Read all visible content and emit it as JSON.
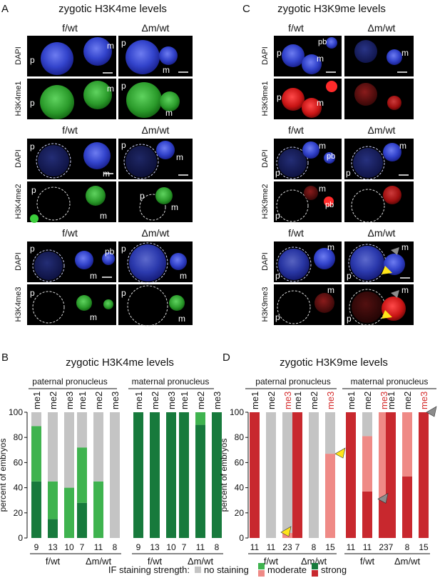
{
  "panels": {
    "A": {
      "letter": "A",
      "title": "zygotic H3K4me levels"
    },
    "C": {
      "letter": "C",
      "title": "zygotic H3K9me levels"
    },
    "B": {
      "letter": "B",
      "title": "zygotic H3K4me levels"
    },
    "D": {
      "letter": "D",
      "title": "zygotic H3K9me levels"
    }
  },
  "genotypes": {
    "control": "f/wt",
    "mutant": "Δm/wt"
  },
  "image_labels": {
    "p": "p",
    "m": "m",
    "pb": "pb",
    "A_rows": [
      "DAPI",
      "H3K4me1",
      "DAPI",
      "H3K4me2",
      "DAPI",
      "H3K4me3"
    ],
    "C_rows": [
      "DAPI",
      "H3K9me1",
      "DAPI",
      "H3K9me2",
      "DAPI",
      "H3K9me3"
    ]
  },
  "chart_common": {
    "ylabel": "percent of embryos",
    "yticks": [
      "0",
      "20",
      "40",
      "60",
      "80",
      "100"
    ],
    "paternal": "paternal pronucleus",
    "maternal": "maternal pronucleus",
    "marks": [
      "me1",
      "me2",
      "me3"
    ]
  },
  "legend": {
    "title": "IF staining strength:",
    "items": [
      "no staining",
      "moderate",
      "strong"
    ]
  },
  "colors": {
    "green_strong": "#177a3c",
    "green_moderate": "#3fb34f",
    "red_strong": "#c8282e",
    "red_moderate": "#ef8a86",
    "none": "#c4c4c4",
    "arrow_yellow": "#ffe51a",
    "arrow_gray": "#8c8c8c"
  },
  "chart_data": [
    {
      "type": "bar",
      "title": "zygotic H3K4me levels",
      "ylabel": "percent of embryos",
      "ylim": [
        0,
        100
      ],
      "stacked": true,
      "bars": [
        {
          "pronucleus": "paternal",
          "genotype": "f/wt",
          "mark": "me1",
          "n": "9",
          "strong": 45,
          "moderate": 44,
          "none": 11
        },
        {
          "pronucleus": "paternal",
          "genotype": "f/wt",
          "mark": "me2",
          "n": "13",
          "strong": 15,
          "moderate": 30,
          "none": 55
        },
        {
          "pronucleus": "paternal",
          "genotype": "f/wt",
          "mark": "me3",
          "n": "10",
          "strong": 0,
          "moderate": 40,
          "none": 60
        },
        {
          "pronucleus": "paternal",
          "genotype": "Δm/wt",
          "mark": "me1",
          "n": "7",
          "strong": 28,
          "moderate": 44,
          "none": 28
        },
        {
          "pronucleus": "paternal",
          "genotype": "Δm/wt",
          "mark": "me2",
          "n": "11",
          "strong": 0,
          "moderate": 45,
          "none": 55
        },
        {
          "pronucleus": "paternal",
          "genotype": "Δm/wt",
          "mark": "me3",
          "n": "8",
          "strong": 0,
          "moderate": 0,
          "none": 100
        },
        {
          "pronucleus": "maternal",
          "genotype": "f/wt",
          "mark": "me1",
          "n": "9",
          "strong": 100,
          "moderate": 0,
          "none": 0
        },
        {
          "pronucleus": "maternal",
          "genotype": "f/wt",
          "mark": "me2",
          "n": "13",
          "strong": 100,
          "moderate": 0,
          "none": 0
        },
        {
          "pronucleus": "maternal",
          "genotype": "f/wt",
          "mark": "me3",
          "n": "10",
          "strong": 100,
          "moderate": 0,
          "none": 0
        },
        {
          "pronucleus": "maternal",
          "genotype": "Δm/wt",
          "mark": "me1",
          "n": "7",
          "strong": 100,
          "moderate": 0,
          "none": 0
        },
        {
          "pronucleus": "maternal",
          "genotype": "Δm/wt",
          "mark": "me2",
          "n": "11",
          "strong": 90,
          "moderate": 10,
          "none": 0
        },
        {
          "pronucleus": "maternal",
          "genotype": "Δm/wt",
          "mark": "me3",
          "n": "8",
          "strong": 100,
          "moderate": 0,
          "none": 0
        }
      ]
    },
    {
      "type": "bar",
      "title": "zygotic H3K9me levels",
      "ylabel": "percent of embryos",
      "ylim": [
        0,
        100
      ],
      "stacked": true,
      "bars": [
        {
          "pronucleus": "paternal",
          "genotype": "f/wt",
          "mark": "me1",
          "n": "11",
          "strong": 100,
          "moderate": 0,
          "none": 0
        },
        {
          "pronucleus": "paternal",
          "genotype": "f/wt",
          "mark": "me2",
          "n": "11",
          "strong": 0,
          "moderate": 0,
          "none": 100
        },
        {
          "pronucleus": "paternal",
          "genotype": "f/wt",
          "mark": "me3",
          "n": "23",
          "strong": 0,
          "moderate": 4,
          "none": 96
        },
        {
          "pronucleus": "paternal",
          "genotype": "Δm/wt",
          "mark": "me1",
          "n": "7",
          "strong": 100,
          "moderate": 0,
          "none": 0
        },
        {
          "pronucleus": "paternal",
          "genotype": "Δm/wt",
          "mark": "me2",
          "n": "8",
          "strong": 0,
          "moderate": 0,
          "none": 100
        },
        {
          "pronucleus": "paternal",
          "genotype": "Δm/wt",
          "mark": "me3",
          "n": "15",
          "strong": 0,
          "moderate": 67,
          "none": 33
        },
        {
          "pronucleus": "maternal",
          "genotype": "f/wt",
          "mark": "me1",
          "n": "11",
          "strong": 100,
          "moderate": 0,
          "none": 0
        },
        {
          "pronucleus": "maternal",
          "genotype": "f/wt",
          "mark": "me2",
          "n": "11",
          "strong": 37,
          "moderate": 44,
          "none": 19
        },
        {
          "pronucleus": "maternal",
          "genotype": "f/wt",
          "mark": "me3",
          "n": "23",
          "strong": 31,
          "moderate": 69,
          "none": 0
        },
        {
          "pronucleus": "maternal",
          "genotype": "Δm/wt",
          "mark": "me1",
          "n": "7",
          "strong": 100,
          "moderate": 0,
          "none": 0
        },
        {
          "pronucleus": "maternal",
          "genotype": "Δm/wt",
          "mark": "me2",
          "n": "8",
          "strong": 49,
          "moderate": 51,
          "none": 0
        },
        {
          "pronucleus": "maternal",
          "genotype": "Δm/wt",
          "mark": "me3",
          "n": "15",
          "strong": 100,
          "moderate": 0,
          "none": 0
        }
      ],
      "highlighted_labels": [
        "me3"
      ],
      "annotations": [
        "yellow arrowhead: paternal me3 f/wt at ~4%",
        "yellow arrowhead: paternal me3 Δm/wt at ~67%",
        "gray arrowhead: maternal me3 f/wt at ~31%",
        "gray arrowhead: maternal me3 Δm/wt at 100%"
      ]
    }
  ]
}
